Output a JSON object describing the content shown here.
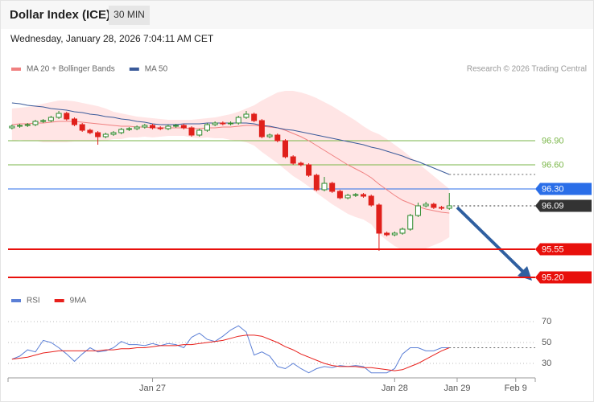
{
  "header": {
    "title": "Dollar Index (ICE)",
    "interval": "30 MIN",
    "timestamp": "Wednesday, January 28, 2026 7:04:11 AM CET"
  },
  "chart_data": [
    {
      "type": "candlestick",
      "source": "Research © 2026 Trading Central",
      "up_color": "#2e8b2e",
      "down_color": "#e0201b",
      "ylim": [
        95.05,
        97.65
      ],
      "xlim": [
        -0.5,
        67
      ],
      "xticks": [
        {
          "value": 18,
          "label": "Jan 27"
        },
        {
          "value": 49,
          "label": "Jan 28"
        },
        {
          "value": 57,
          "label": "Jan 29"
        },
        {
          "value": 64.5,
          "label": "Feb 9"
        }
      ],
      "open": [
        97.06,
        97.08,
        97.09,
        97.1,
        97.14,
        97.15,
        97.19,
        97.24,
        97.17,
        97.1,
        97.03,
        97.0,
        96.95,
        96.98,
        97.0,
        97.04,
        97.05,
        97.07,
        97.09,
        97.06,
        97.05,
        97.08,
        97.09,
        97.06,
        96.97,
        97.03,
        97.1,
        97.12,
        97.11,
        97.12,
        97.19,
        97.23,
        97.15,
        96.95,
        96.97,
        96.9,
        96.7,
        96.62,
        96.6,
        96.47,
        96.29,
        96.37,
        96.27,
        96.19,
        96.22,
        96.23,
        96.21,
        96.1,
        95.75,
        95.73,
        95.75,
        95.8,
        95.97,
        96.09,
        96.11,
        96.07,
        96.06
      ],
      "high": [
        97.1,
        97.11,
        97.12,
        97.16,
        97.17,
        97.21,
        97.27,
        97.26,
        97.19,
        97.12,
        97.05,
        97.02,
        97.0,
        97.02,
        97.06,
        97.07,
        97.09,
        97.11,
        97.11,
        97.08,
        97.1,
        97.11,
        97.11,
        97.08,
        97.05,
        97.12,
        97.14,
        97.14,
        97.14,
        97.21,
        97.27,
        97.25,
        97.17,
        96.99,
        96.99,
        96.92,
        96.72,
        96.64,
        96.62,
        96.49,
        96.45,
        96.39,
        96.29,
        96.24,
        96.25,
        96.25,
        96.23,
        96.12,
        95.77,
        95.77,
        95.82,
        95.99,
        96.13,
        96.14,
        96.13,
        96.09,
        96.25
      ],
      "low": [
        97.04,
        97.06,
        97.07,
        97.08,
        97.12,
        97.13,
        97.17,
        97.15,
        97.08,
        97.01,
        96.98,
        96.85,
        96.93,
        96.96,
        96.98,
        97.02,
        97.03,
        97.05,
        97.04,
        97.03,
        97.03,
        97.06,
        97.04,
        96.95,
        96.95,
        97.01,
        97.08,
        97.09,
        97.09,
        97.1,
        97.17,
        97.13,
        96.93,
        96.93,
        96.88,
        96.68,
        96.6,
        96.58,
        96.45,
        96.27,
        96.27,
        96.25,
        96.17,
        96.17,
        96.2,
        96.19,
        96.08,
        95.53,
        95.71,
        95.71,
        95.73,
        95.78,
        95.95,
        96.07,
        96.05,
        96.04,
        96.04
      ],
      "close": [
        97.08,
        97.09,
        97.1,
        97.14,
        97.15,
        97.19,
        97.24,
        97.17,
        97.1,
        97.03,
        97.0,
        96.95,
        96.98,
        97.0,
        97.04,
        97.05,
        97.07,
        97.09,
        97.06,
        97.05,
        97.08,
        97.09,
        97.06,
        96.97,
        97.03,
        97.1,
        97.12,
        97.11,
        97.12,
        97.19,
        97.23,
        97.15,
        96.95,
        96.97,
        96.9,
        96.7,
        96.62,
        96.6,
        96.47,
        96.29,
        96.37,
        96.27,
        96.19,
        96.22,
        96.23,
        96.21,
        96.1,
        95.75,
        95.73,
        95.75,
        95.8,
        95.97,
        96.09,
        96.11,
        96.07,
        96.06,
        96.09
      ],
      "series": [
        {
          "name": "MA 20 + Bollinger Bands",
          "color": "#f08080",
          "band_color": "#ffdede",
          "values": [
            97.1,
            97.11,
            97.11,
            97.12,
            97.12,
            97.13,
            97.14,
            97.14,
            97.14,
            97.13,
            97.12,
            97.11,
            97.1,
            97.09,
            97.08,
            97.08,
            97.07,
            97.07,
            97.06,
            97.06,
            97.06,
            97.06,
            97.06,
            97.05,
            97.05,
            97.06,
            97.06,
            97.07,
            97.07,
            97.08,
            97.09,
            97.09,
            97.08,
            97.07,
            97.06,
            97.03,
            96.99,
            96.95,
            96.9,
            96.84,
            96.78,
            96.72,
            96.66,
            96.6,
            96.55,
            96.5,
            96.44,
            96.36,
            96.29,
            96.22,
            96.16,
            96.12,
            96.08,
            96.05,
            96.03,
            96.01,
            96.0
          ],
          "upper": [
            97.3,
            97.31,
            97.32,
            97.34,
            97.36,
            97.38,
            97.4,
            97.4,
            97.39,
            97.37,
            97.35,
            97.33,
            97.3,
            97.26,
            97.24,
            97.22,
            97.2,
            97.19,
            97.18,
            97.17,
            97.16,
            97.16,
            97.16,
            97.16,
            97.17,
            97.18,
            97.19,
            97.21,
            97.23,
            97.26,
            97.3,
            97.34,
            97.4,
            97.45,
            97.5,
            97.52,
            97.52,
            97.5,
            97.47,
            97.43,
            97.38,
            97.33,
            97.27,
            97.21,
            97.15,
            97.08,
            97.02,
            96.98,
            96.92,
            96.85,
            96.78,
            96.7,
            96.62,
            96.54,
            96.46,
            96.38,
            96.3
          ],
          "lower": [
            96.9,
            96.91,
            96.9,
            96.9,
            96.88,
            96.88,
            96.88,
            96.88,
            96.89,
            96.89,
            96.89,
            96.89,
            96.9,
            96.92,
            96.92,
            96.94,
            96.94,
            96.95,
            96.94,
            96.95,
            96.96,
            96.96,
            96.96,
            96.94,
            96.93,
            96.94,
            96.93,
            96.93,
            96.91,
            96.9,
            96.88,
            96.84,
            96.76,
            96.69,
            96.62,
            96.54,
            96.46,
            96.4,
            96.33,
            96.25,
            96.18,
            96.11,
            96.05,
            95.99,
            95.95,
            95.92,
            95.86,
            95.74,
            95.66,
            95.59,
            95.54,
            95.54,
            95.54,
            95.56,
            95.6,
            95.64,
            95.7
          ]
        },
        {
          "name": "MA 50",
          "color": "#3a5a9a",
          "values": [
            97.37,
            97.36,
            97.34,
            97.33,
            97.32,
            97.3,
            97.29,
            97.28,
            97.26,
            97.25,
            97.23,
            97.22,
            97.2,
            97.19,
            97.17,
            97.16,
            97.14,
            97.13,
            97.11,
            97.1,
            97.1,
            97.1,
            97.11,
            97.11,
            97.11,
            97.12,
            97.12,
            97.12,
            97.12,
            97.12,
            97.12,
            97.11,
            97.09,
            97.08,
            97.06,
            97.04,
            97.03,
            97.01,
            96.99,
            96.97,
            96.95,
            96.93,
            96.91,
            96.89,
            96.87,
            96.85,
            96.82,
            96.8,
            96.77,
            96.74,
            96.71,
            96.67,
            96.64,
            96.6,
            96.56,
            96.52,
            96.48
          ]
        }
      ],
      "levels": [
        {
          "value": 96.9,
          "label": "96.90",
          "color": "#7ab648",
          "box": false
        },
        {
          "value": 96.6,
          "label": "96.60",
          "color": "#7ab648",
          "box": false
        },
        {
          "value": 96.3,
          "label": "96.30",
          "color": "#2a6ee8",
          "box": true
        },
        {
          "value": 96.09,
          "label": "96.09",
          "color": "#333333",
          "box": true,
          "dotted": true
        },
        {
          "value": 95.55,
          "label": "95.55",
          "color": "#e8100c",
          "box": true
        },
        {
          "value": 95.2,
          "label": "95.20",
          "color": "#e8100c",
          "box": true
        }
      ]
    },
    {
      "type": "line",
      "xlim": [
        -0.5,
        67
      ],
      "ylim": [
        20,
        80
      ],
      "yticks": [
        30,
        50,
        70
      ],
      "grid": true,
      "series": [
        {
          "name": "RSI",
          "color": "#5b7fd6",
          "values": [
            34,
            37,
            43,
            41,
            52,
            50,
            45,
            39,
            32,
            39,
            45,
            41,
            42,
            45,
            51,
            48,
            48,
            47,
            49,
            47,
            49,
            48,
            45,
            55,
            59,
            53,
            51,
            56,
            62,
            66,
            60,
            38,
            41,
            37,
            27,
            25,
            30,
            25,
            21,
            25,
            27,
            26,
            28,
            27,
            28,
            27,
            21,
            21,
            21,
            25,
            39,
            45,
            45,
            42,
            42,
            45,
            45
          ]
        },
        {
          "name": "9MA",
          "color": "#e8201c",
          "values": [
            34,
            35,
            36,
            38,
            40,
            41,
            42,
            42,
            42,
            42,
            42,
            42,
            43,
            43,
            44,
            44,
            45,
            45,
            46,
            47,
            47,
            47,
            48,
            48,
            49,
            50,
            51,
            52,
            54,
            56,
            57,
            57,
            56,
            53,
            50,
            46,
            43,
            39,
            36,
            33,
            30,
            28,
            27,
            27,
            27,
            26,
            26,
            25,
            24,
            23,
            24,
            27,
            30,
            34,
            38,
            42,
            45
          ]
        }
      ]
    }
  ]
}
